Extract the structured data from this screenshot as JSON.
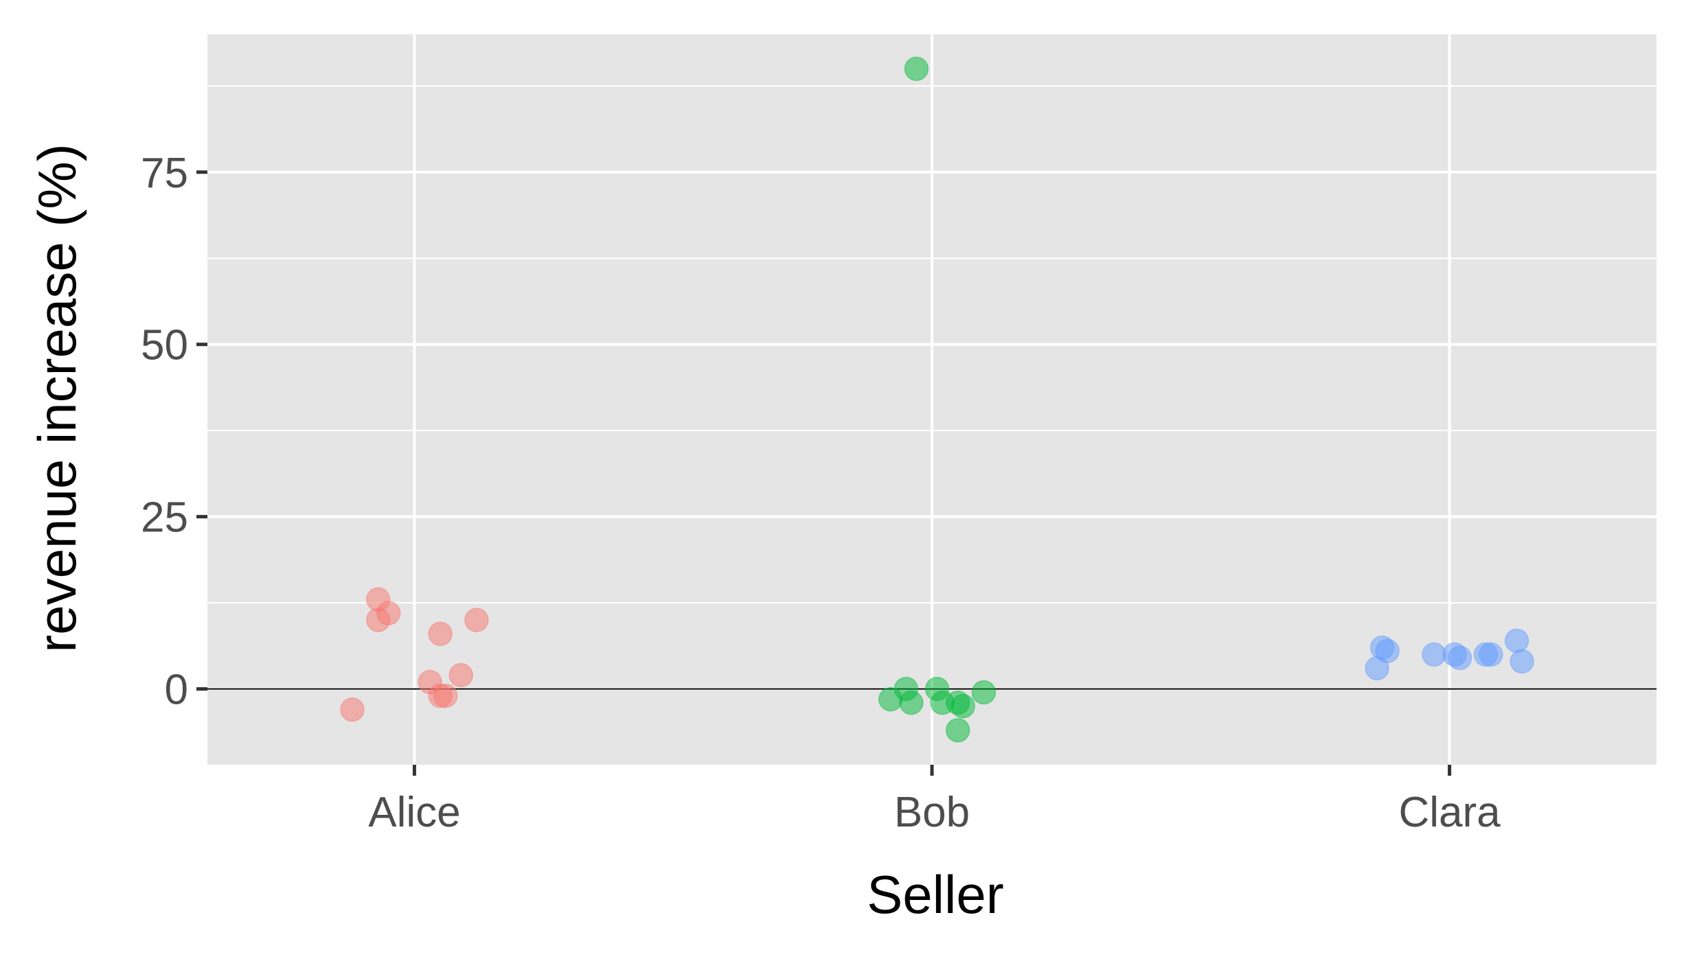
{
  "chart_data": {
    "type": "scatter",
    "title": "",
    "xlabel": "Seller",
    "ylabel": "revenue increase (%)",
    "categories": [
      "Alice",
      "Bob",
      "Clara"
    ],
    "ylim": [
      -11,
      95
    ],
    "yticks": [
      0,
      25,
      50,
      75
    ],
    "ytick_labels": [
      "0",
      "25",
      "50",
      "75"
    ],
    "grid": true,
    "legend": "none",
    "reference_line": {
      "y": 0,
      "color": "#000000"
    },
    "background": "#e5e5e5",
    "point_alpha": 0.5,
    "series": [
      {
        "category": "Alice",
        "color": "#F8766D",
        "points": [
          {
            "x": -0.07,
            "y": 13
          },
          {
            "x": -0.05,
            "y": 11
          },
          {
            "x": -0.07,
            "y": 10
          },
          {
            "x": 0.12,
            "y": 10
          },
          {
            "x": 0.05,
            "y": 8
          },
          {
            "x": 0.09,
            "y": 2
          },
          {
            "x": 0.03,
            "y": 1
          },
          {
            "x": 0.05,
            "y": -1
          },
          {
            "x": 0.06,
            "y": -1
          },
          {
            "x": -0.12,
            "y": -3
          }
        ]
      },
      {
        "category": "Bob",
        "color": "#00BA38",
        "points": [
          {
            "x": -0.03,
            "y": 90
          },
          {
            "x": -0.05,
            "y": 0
          },
          {
            "x": 0.01,
            "y": 0
          },
          {
            "x": 0.1,
            "y": -0.5
          },
          {
            "x": -0.08,
            "y": -1.5
          },
          {
            "x": -0.04,
            "y": -2
          },
          {
            "x": 0.02,
            "y": -2
          },
          {
            "x": 0.05,
            "y": -2
          },
          {
            "x": 0.06,
            "y": -2.5
          },
          {
            "x": 0.05,
            "y": -6
          }
        ]
      },
      {
        "category": "Clara",
        "color": "#619CFF",
        "points": [
          {
            "x": -0.13,
            "y": 6
          },
          {
            "x": -0.12,
            "y": 5.5
          },
          {
            "x": -0.03,
            "y": 5
          },
          {
            "x": 0.01,
            "y": 5
          },
          {
            "x": 0.02,
            "y": 4.5
          },
          {
            "x": 0.07,
            "y": 5
          },
          {
            "x": 0.08,
            "y": 5
          },
          {
            "x": 0.13,
            "y": 7
          },
          {
            "x": 0.14,
            "y": 4
          },
          {
            "x": -0.14,
            "y": 3
          }
        ]
      }
    ]
  }
}
